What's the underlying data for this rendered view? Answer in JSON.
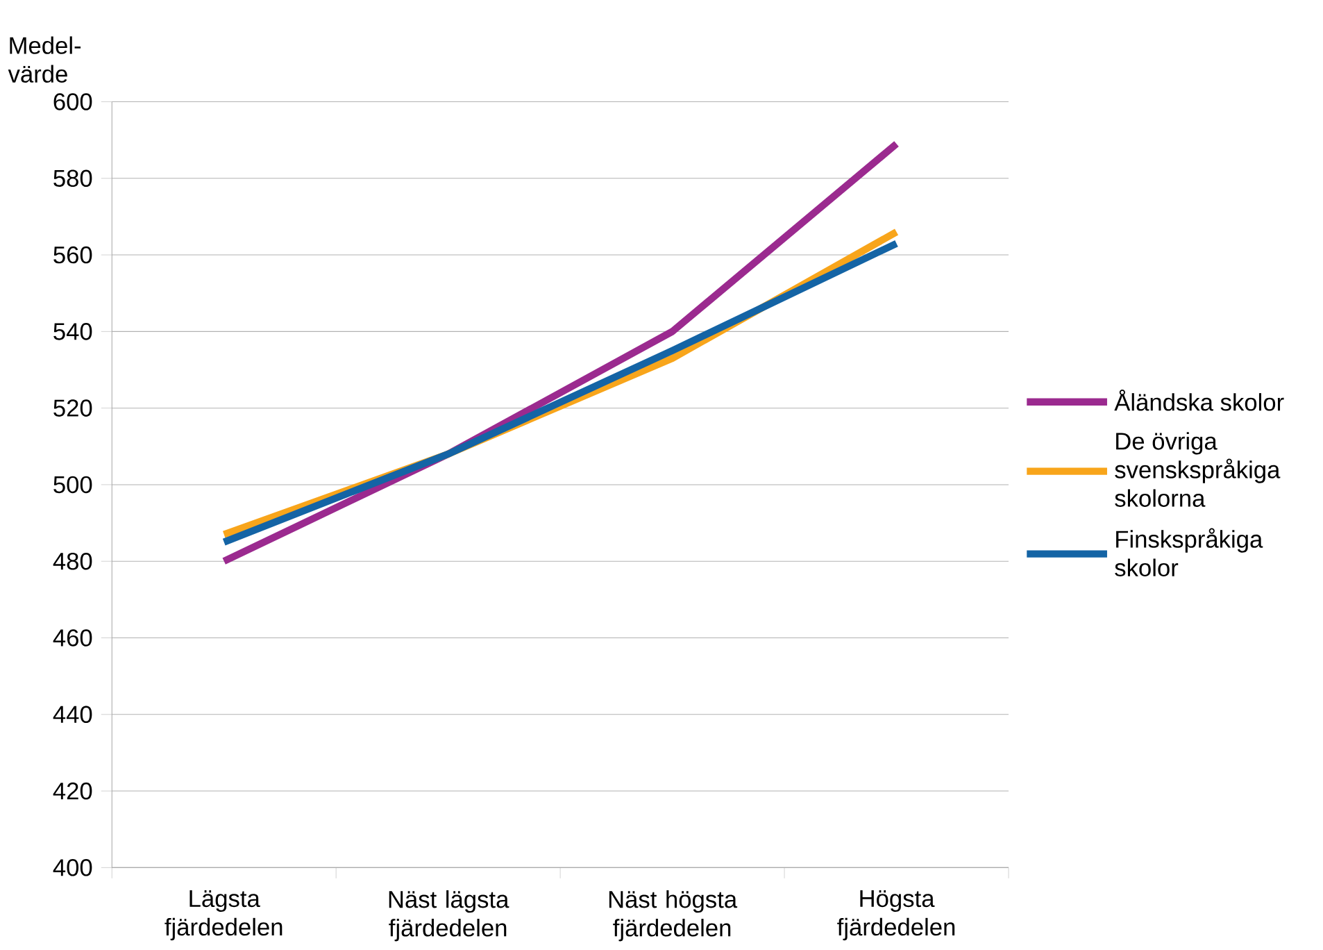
{
  "chart_data": {
    "type": "line",
    "ylabel": "Medel-värde",
    "categories": [
      "Lägsta fjärdedelen",
      "Näst lägsta fjärdedelen",
      "Näst högsta fjärdedelen",
      "Högsta fjärdedelen"
    ],
    "series": [
      {
        "name": "Åländska skolor",
        "color": "#9b2a8f",
        "values": [
          480,
          508,
          540,
          589
        ]
      },
      {
        "name": "De övriga svenskspråkiga skolorna",
        "color": "#f8a51b",
        "values": [
          487,
          508,
          533,
          566
        ]
      },
      {
        "name": "Finskspråkiga skolor",
        "color": "#1464a5",
        "values": [
          485,
          508,
          535,
          563
        ]
      }
    ],
    "ylim": [
      400,
      600
    ],
    "yticks": [
      400,
      420,
      440,
      460,
      480,
      500,
      520,
      540,
      560,
      580,
      600
    ],
    "grid": "y",
    "legend": "right",
    "marker": "none",
    "line_style": "solid"
  }
}
